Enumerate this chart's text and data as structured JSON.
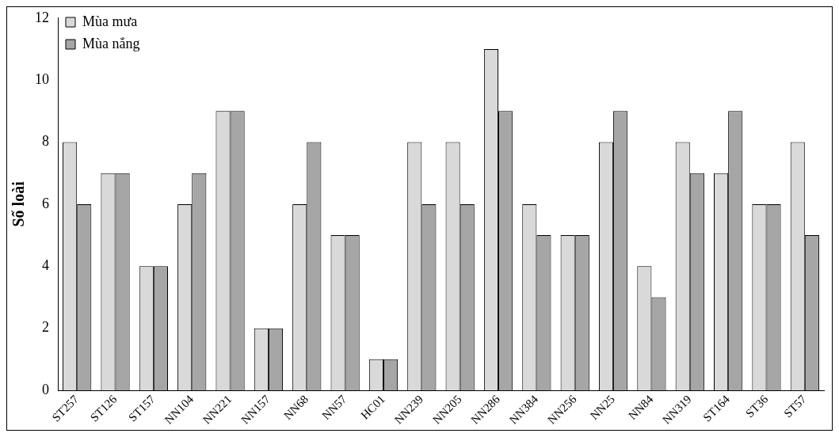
{
  "chart_data": {
    "type": "bar",
    "ylabel": "Số loài",
    "categories": [
      "ST257",
      "ST126",
      "ST157",
      "NN104",
      "NN221",
      "NN157",
      "NN68",
      "NN57",
      "HC01",
      "NN239",
      "NN205",
      "NN286",
      "NN384",
      "NN256",
      "NN25",
      "NN84",
      "NN319",
      "ST164",
      "ST36",
      "ST57"
    ],
    "series": [
      {
        "name": "Mùa mưa",
        "color": "#d9d9d9",
        "values": [
          8,
          7,
          4,
          6,
          9,
          2,
          6,
          5,
          1,
          8,
          8,
          11,
          6,
          5,
          8,
          4,
          8,
          7,
          6,
          8
        ]
      },
      {
        "name": "Mùa nắng",
        "color": "#a6a6a6",
        "values": [
          6,
          7,
          4,
          7,
          9,
          2,
          8,
          5,
          1,
          6,
          6,
          9,
          5,
          5,
          9,
          3,
          7,
          9,
          6,
          5
        ]
      }
    ],
    "ylim": [
      0,
      12
    ],
    "yticks": [
      0,
      2,
      4,
      6,
      8,
      10,
      12
    ],
    "grid": false,
    "legend": "top left"
  }
}
